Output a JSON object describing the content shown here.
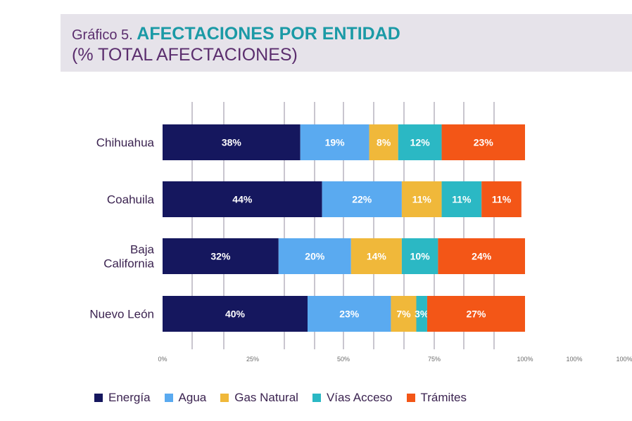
{
  "title": {
    "prefix": "Gráfico 5. ",
    "main": "AFECTACIONES POR ENTIDAD",
    "subtitle": "(% TOTAL AFECTACIONES)"
  },
  "chart_data": {
    "type": "bar",
    "orientation": "horizontal",
    "stacked": true,
    "categories": [
      "Chihuahua",
      "Coahuila",
      "Baja California",
      "Nuevo León"
    ],
    "category_labels": [
      [
        "Chihuahua"
      ],
      [
        "Coahuila"
      ],
      [
        "Baja",
        "California"
      ],
      [
        "Nuevo León"
      ]
    ],
    "series": [
      {
        "name": "Energía",
        "color": "#15175e",
        "values": [
          38,
          44,
          32,
          40
        ],
        "labels": [
          "38%",
          "44%",
          "32%",
          "40%"
        ]
      },
      {
        "name": "Agua",
        "color": "#5aaaf0",
        "values": [
          19,
          22,
          20,
          23
        ],
        "labels": [
          "19%",
          "22%",
          "20%",
          "23%"
        ]
      },
      {
        "name": "Gas Natural",
        "color": "#f0b83a",
        "values": [
          8,
          11,
          14,
          7
        ],
        "labels": [
          "8%",
          "11%",
          "14%",
          "7%"
        ]
      },
      {
        "name": "Vías Acceso",
        "color": "#2bb8c4",
        "values": [
          12,
          11,
          10,
          3
        ],
        "labels": [
          "12%",
          "11%",
          "10%",
          "3%"
        ]
      },
      {
        "name": "Trámites",
        "color": "#f35617",
        "values": [
          23,
          11,
          24,
          27
        ],
        "labels": [
          "23%",
          "11%",
          "24%",
          "27%"
        ]
      }
    ],
    "x_ticks": [
      "0%",
      "25%",
      "50%",
      "75%",
      "100%",
      "100%",
      "100%"
    ],
    "xlim": [
      0,
      100
    ],
    "grid": true,
    "legend_position": "bottom"
  }
}
